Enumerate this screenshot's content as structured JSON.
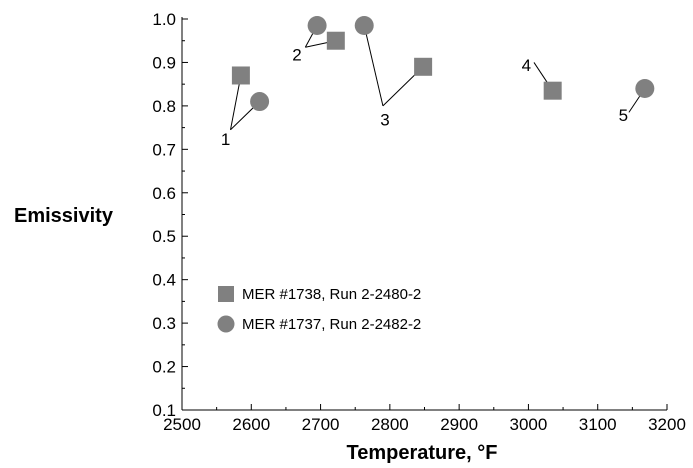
{
  "chart_data": {
    "type": "scatter",
    "title": "",
    "xlabel": "Temperature, °F",
    "ylabel": "Emissivity",
    "xlim": [
      2500,
      3200
    ],
    "ylim": [
      0.1,
      1.0
    ],
    "x_ticks": [
      "2500",
      "2600",
      "2700",
      "2800",
      "2900",
      "3000",
      "3100",
      "3200"
    ],
    "y_ticks": [
      "0.1",
      "0.2",
      "0.3",
      "0.4",
      "0.5",
      "0.6",
      "0.7",
      "0.8",
      "0.9",
      "1.0"
    ],
    "grid": false,
    "legend_position": "lower-left",
    "marker_color": "#808080",
    "series": [
      {
        "name": "MER #1738, Run 2-2480-2",
        "marker": "square",
        "points": [
          {
            "x": 2585,
            "y": 0.87
          },
          {
            "x": 2722,
            "y": 0.95
          },
          {
            "x": 2848,
            "y": 0.89
          },
          {
            "x": 3035,
            "y": 0.835
          }
        ]
      },
      {
        "name": "MER #1737, Run 2-2482-2",
        "marker": "circle",
        "points": [
          {
            "x": 2612,
            "y": 0.81
          },
          {
            "x": 2695,
            "y": 0.985
          },
          {
            "x": 2763,
            "y": 0.985
          },
          {
            "x": 3168,
            "y": 0.84
          }
        ]
      }
    ],
    "annotations": [
      {
        "label": "1",
        "text_at": {
          "x": 2563,
          "y": 0.71
        },
        "apex": {
          "x": 2570,
          "y": 0.745
        },
        "targets": [
          {
            "x": 2585,
            "y": 0.87
          },
          {
            "x": 2612,
            "y": 0.81
          }
        ]
      },
      {
        "label": "2",
        "text_at": {
          "x": 2666,
          "y": 0.905
        },
        "apex": {
          "x": 2678,
          "y": 0.935
        },
        "targets": [
          {
            "x": 2695,
            "y": 0.985
          },
          {
            "x": 2722,
            "y": 0.95
          }
        ]
      },
      {
        "label": "3",
        "text_at": {
          "x": 2793,
          "y": 0.755
        },
        "apex": {
          "x": 2790,
          "y": 0.8
        },
        "targets": [
          {
            "x": 2763,
            "y": 0.985
          },
          {
            "x": 2848,
            "y": 0.89
          }
        ]
      },
      {
        "label": "4",
        "text_at": {
          "x": 2997,
          "y": 0.88
        },
        "apex": {
          "x": 3008,
          "y": 0.9
        },
        "targets": [
          {
            "x": 3035,
            "y": 0.835
          }
        ]
      },
      {
        "label": "5",
        "text_at": {
          "x": 3137,
          "y": 0.765
        },
        "apex": {
          "x": 3145,
          "y": 0.785
        },
        "targets": [
          {
            "x": 3168,
            "y": 0.84
          }
        ]
      }
    ]
  }
}
